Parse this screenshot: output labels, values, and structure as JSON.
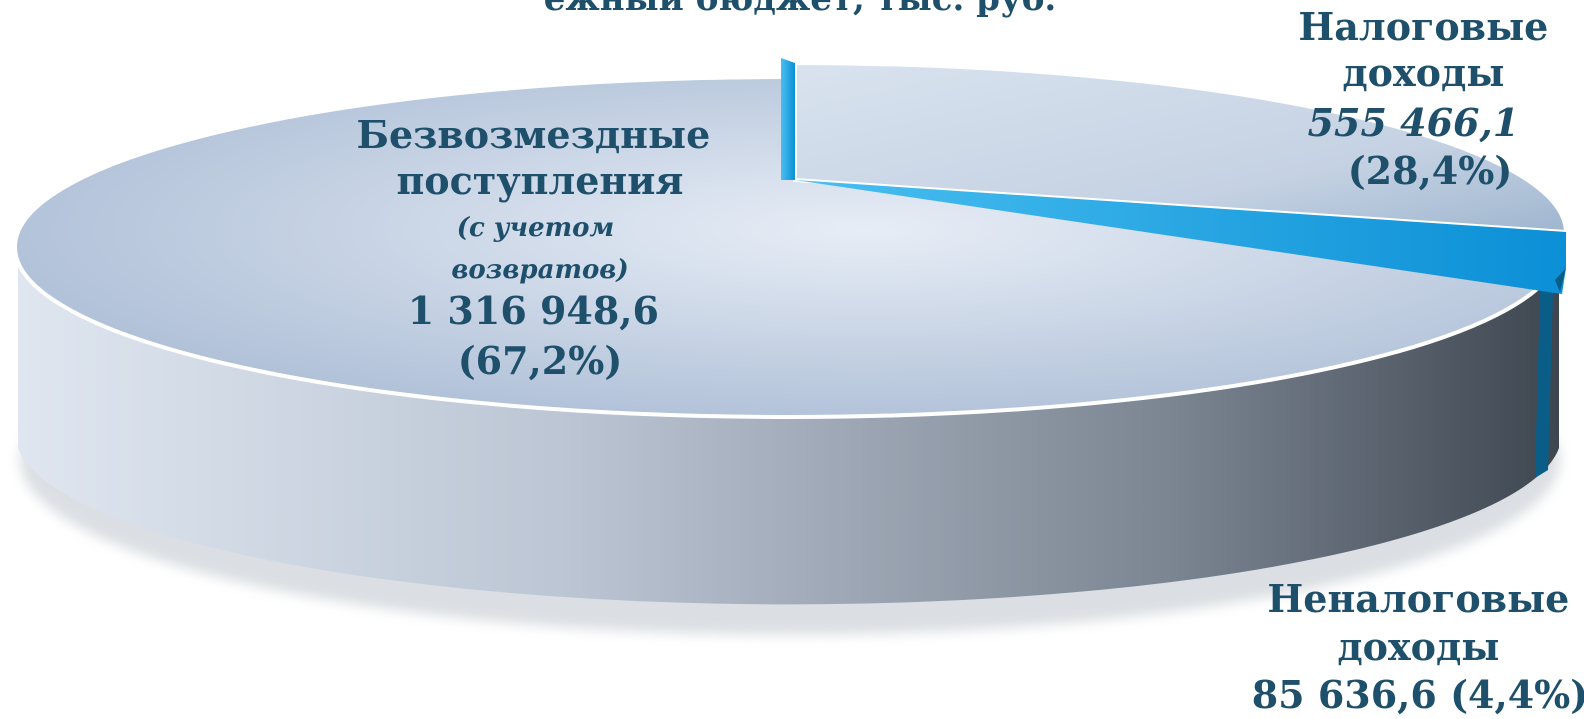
{
  "chart_data": {
    "type": "pie",
    "title": "",
    "units": "",
    "slices": [
      {
        "name_lines": [
          "Налоговые",
          "доходы"
        ],
        "value": 555466.1,
        "value_label": "555 466,1",
        "percent_label": "(28,4%)",
        "percent": 28.4,
        "color": "#1aa3e0"
      },
      {
        "name_lines": [
          "Неналоговые",
          "доходы"
        ],
        "value": 85636.6,
        "value_label": "85 636,6 (4,4%)",
        "percent_label": "",
        "percent": 4.4,
        "color": "#0a5d86"
      },
      {
        "name_lines": [
          "Безвозмездные",
          "поступления"
        ],
        "note_lines": [
          "(с учетом",
          "возвратов)"
        ],
        "value": 1316948.6,
        "value_label": "1 316 948,6",
        "percent_label": "(67,2%)",
        "percent": 67.2,
        "color": "#c9d6e8"
      }
    ],
    "top_partial_title": "ежный бюджет, тыс. руб."
  }
}
